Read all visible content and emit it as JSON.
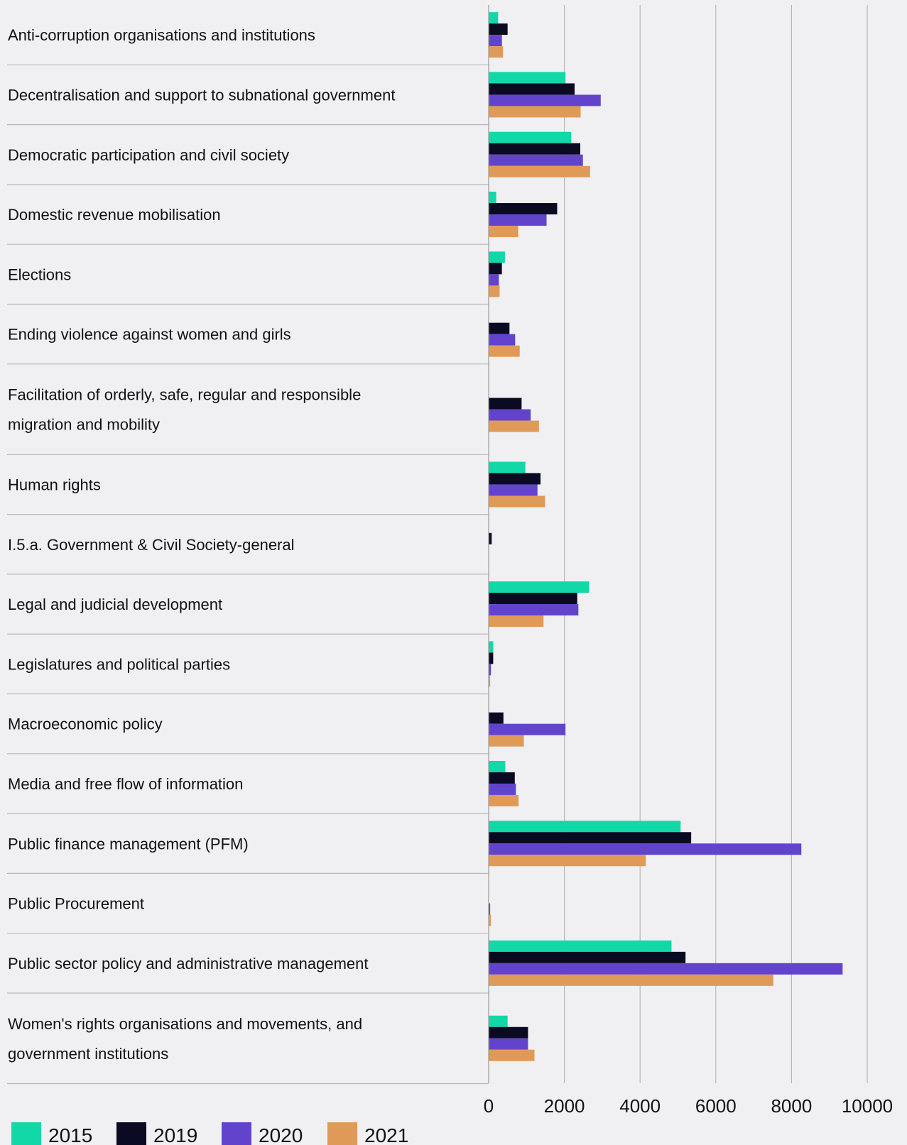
{
  "chart_data": {
    "type": "bar",
    "orientation": "horizontal",
    "title": "",
    "xlabel": "",
    "ylabel": "",
    "xlim": [
      0,
      10000
    ],
    "x_ticks": [
      0,
      2000,
      4000,
      6000,
      8000,
      10000
    ],
    "grid": true,
    "legend_placement": "bottom",
    "categories": [
      "Anti-corruption organisations and institutions",
      "Decentralisation and support to subnational government",
      "Democratic participation and civil society",
      "Domestic revenue mobilisation",
      "Elections",
      "Ending violence against women and girls",
      "Facilitation of orderly, safe, regular and responsible migration and mobility",
      "Human rights",
      "I.5.a. Government & Civil Society-general",
      "Legal and judicial development",
      "Legislatures and political parties",
      "Macroeconomic policy",
      "Media and free flow of information",
      "Public finance management (PFM)",
      "Public Procurement",
      "Public sector policy and administrative management",
      "Women's rights organisations and movements, and government institutions"
    ],
    "series": [
      {
        "name": "2015",
        "color": "#12d8a8",
        "values": [
          250,
          2030,
          2180,
          200,
          430,
          0,
          0,
          970,
          0,
          2650,
          120,
          0,
          440,
          5070,
          0,
          4830,
          500
        ]
      },
      {
        "name": "2019",
        "color": "#0a0a23",
        "values": [
          500,
          2270,
          2420,
          1810,
          350,
          550,
          870,
          1370,
          80,
          2340,
          120,
          390,
          690,
          5350,
          0,
          5200,
          1040
        ]
      },
      {
        "name": "2020",
        "color": "#6244cc",
        "values": [
          350,
          2960,
          2490,
          1530,
          270,
          700,
          1110,
          1290,
          0,
          2370,
          60,
          2030,
          720,
          8260,
          40,
          9350,
          1040
        ]
      },
      {
        "name": "2021",
        "color": "#e09a58",
        "values": [
          380,
          2430,
          2680,
          780,
          290,
          820,
          1330,
          1490,
          0,
          1450,
          40,
          930,
          790,
          4150,
          60,
          7520,
          1210
        ]
      }
    ]
  }
}
